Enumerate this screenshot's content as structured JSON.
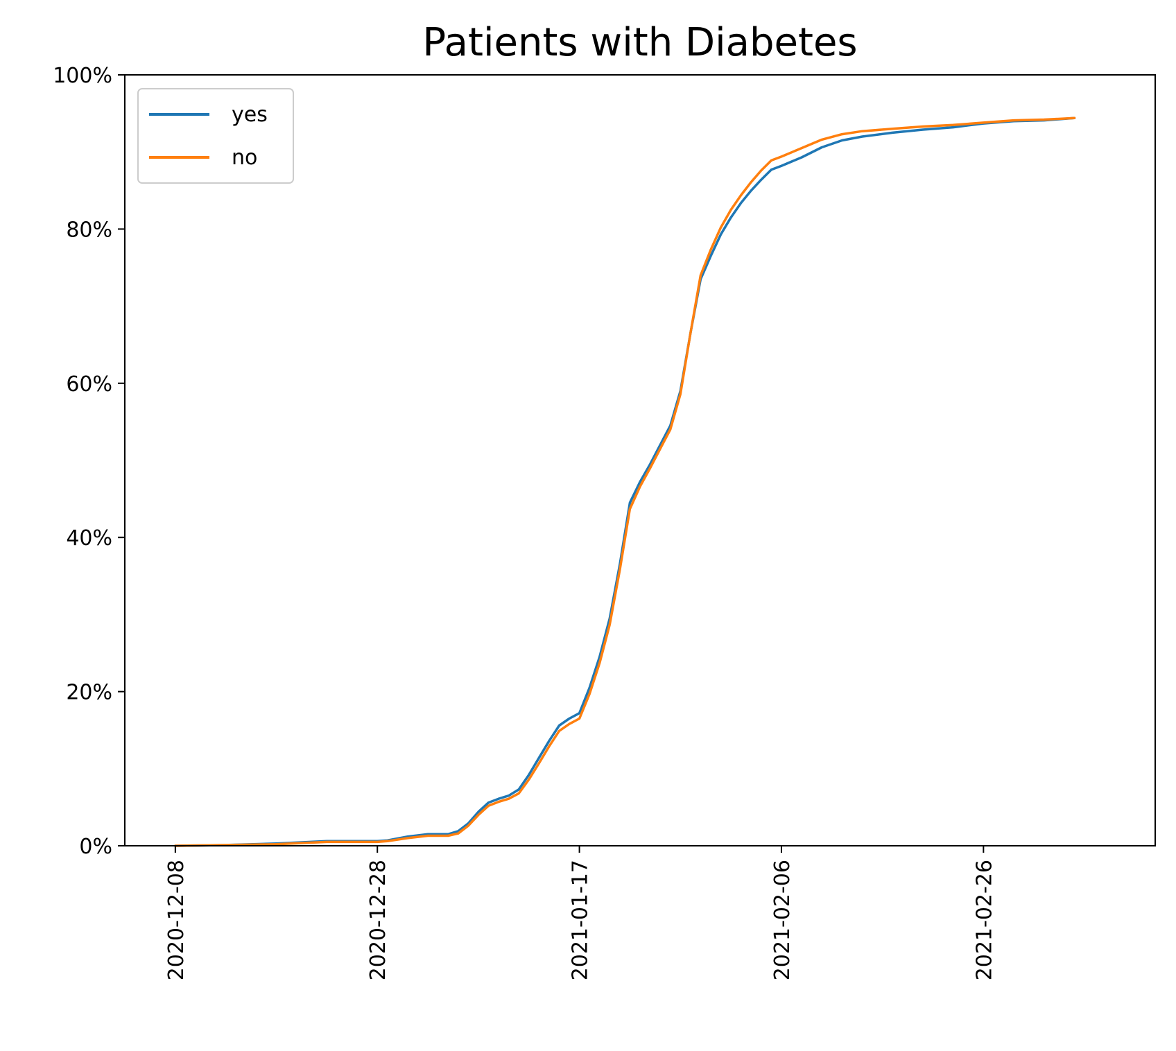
{
  "chart_data": {
    "type": "line",
    "title": "Patients with Diabetes",
    "xlabel": "",
    "ylabel": "",
    "x_ticks": [
      "2020-12-08",
      "2020-12-28",
      "2021-01-17",
      "2021-02-06",
      "2021-02-26"
    ],
    "y_ticks": [
      "0%",
      "20%",
      "40%",
      "60%",
      "80%",
      "100%"
    ],
    "ylim": [
      0,
      100
    ],
    "xlim": [
      "2020-12-03",
      "2021-03-15"
    ],
    "legend_position": "top-left",
    "grid": false,
    "series": [
      {
        "name": "yes",
        "color": "#1f77b4",
        "points": [
          [
            "2020-12-08",
            0
          ],
          [
            "2020-12-13",
            0.1
          ],
          [
            "2020-12-18",
            0.3
          ],
          [
            "2020-12-23",
            0.6
          ],
          [
            "2020-12-28",
            0.6
          ],
          [
            "2020-12-29",
            0.7
          ],
          [
            "2020-12-31",
            1.2
          ],
          [
            "2021-01-02",
            1.5
          ],
          [
            "2021-01-04",
            1.5
          ],
          [
            "2021-01-05",
            1.9
          ],
          [
            "2021-01-06",
            2.9
          ],
          [
            "2021-01-07",
            4.4
          ],
          [
            "2021-01-08",
            5.6
          ],
          [
            "2021-01-09",
            6.1
          ],
          [
            "2021-01-10",
            6.5
          ],
          [
            "2021-01-11",
            7.3
          ],
          [
            "2021-01-12",
            9.2
          ],
          [
            "2021-01-13",
            11.4
          ],
          [
            "2021-01-14",
            13.6
          ],
          [
            "2021-01-15",
            15.6
          ],
          [
            "2021-01-16",
            16.5
          ],
          [
            "2021-01-17",
            17.2
          ],
          [
            "2021-01-18",
            20.5
          ],
          [
            "2021-01-19",
            24.5
          ],
          [
            "2021-01-20",
            29.5
          ],
          [
            "2021-01-21",
            36.5
          ],
          [
            "2021-01-22",
            44.5
          ],
          [
            "2021-01-23",
            47.2
          ],
          [
            "2021-01-24",
            49.5
          ],
          [
            "2021-01-25",
            52.0
          ],
          [
            "2021-01-26",
            54.5
          ],
          [
            "2021-01-27",
            59.0
          ],
          [
            "2021-01-28",
            66.5
          ],
          [
            "2021-01-29",
            73.5
          ],
          [
            "2021-01-30",
            76.5
          ],
          [
            "2021-01-31",
            79.3
          ],
          [
            "2021-02-01",
            81.5
          ],
          [
            "2021-02-02",
            83.4
          ],
          [
            "2021-02-03",
            85.0
          ],
          [
            "2021-02-04",
            86.4
          ],
          [
            "2021-02-05",
            87.7
          ],
          [
            "2021-02-06",
            88.2
          ],
          [
            "2021-02-08",
            89.3
          ],
          [
            "2021-02-10",
            90.6
          ],
          [
            "2021-02-12",
            91.5
          ],
          [
            "2021-02-14",
            92.0
          ],
          [
            "2021-02-17",
            92.5
          ],
          [
            "2021-02-20",
            92.9
          ],
          [
            "2021-02-23",
            93.2
          ],
          [
            "2021-02-26",
            93.7
          ],
          [
            "2021-03-01",
            94.0
          ],
          [
            "2021-03-04",
            94.1
          ],
          [
            "2021-03-07",
            94.4
          ]
        ]
      },
      {
        "name": "no",
        "color": "#ff7f0e",
        "points": [
          [
            "2020-12-08",
            0
          ],
          [
            "2020-12-13",
            0.1
          ],
          [
            "2020-12-18",
            0.2
          ],
          [
            "2020-12-23",
            0.5
          ],
          [
            "2020-12-28",
            0.5
          ],
          [
            "2020-12-29",
            0.6
          ],
          [
            "2020-12-31",
            1.0
          ],
          [
            "2021-01-02",
            1.3
          ],
          [
            "2021-01-04",
            1.3
          ],
          [
            "2021-01-05",
            1.6
          ],
          [
            "2021-01-06",
            2.6
          ],
          [
            "2021-01-07",
            4.0
          ],
          [
            "2021-01-08",
            5.2
          ],
          [
            "2021-01-09",
            5.7
          ],
          [
            "2021-01-10",
            6.1
          ],
          [
            "2021-01-11",
            6.8
          ],
          [
            "2021-01-12",
            8.6
          ],
          [
            "2021-01-13",
            10.7
          ],
          [
            "2021-01-14",
            12.9
          ],
          [
            "2021-01-15",
            14.9
          ],
          [
            "2021-01-16",
            15.8
          ],
          [
            "2021-01-17",
            16.5
          ],
          [
            "2021-01-18",
            19.7
          ],
          [
            "2021-01-19",
            23.7
          ],
          [
            "2021-01-20",
            28.7
          ],
          [
            "2021-01-21",
            35.8
          ],
          [
            "2021-01-22",
            43.7
          ],
          [
            "2021-01-23",
            46.6
          ],
          [
            "2021-01-24",
            49.0
          ],
          [
            "2021-01-25",
            51.5
          ],
          [
            "2021-01-26",
            54.0
          ],
          [
            "2021-01-27",
            58.6
          ],
          [
            "2021-01-28",
            66.5
          ],
          [
            "2021-01-29",
            74.0
          ],
          [
            "2021-01-30",
            77.3
          ],
          [
            "2021-01-31",
            80.2
          ],
          [
            "2021-02-01",
            82.5
          ],
          [
            "2021-02-02",
            84.4
          ],
          [
            "2021-02-03",
            86.1
          ],
          [
            "2021-02-04",
            87.6
          ],
          [
            "2021-02-05",
            88.9
          ],
          [
            "2021-02-06",
            89.4
          ],
          [
            "2021-02-08",
            90.5
          ],
          [
            "2021-02-10",
            91.6
          ],
          [
            "2021-02-12",
            92.3
          ],
          [
            "2021-02-14",
            92.7
          ],
          [
            "2021-02-17",
            93.0
          ],
          [
            "2021-02-20",
            93.3
          ],
          [
            "2021-02-23",
            93.5
          ],
          [
            "2021-02-26",
            93.8
          ],
          [
            "2021-03-01",
            94.1
          ],
          [
            "2021-03-04",
            94.2
          ],
          [
            "2021-03-07",
            94.4
          ]
        ]
      }
    ]
  }
}
